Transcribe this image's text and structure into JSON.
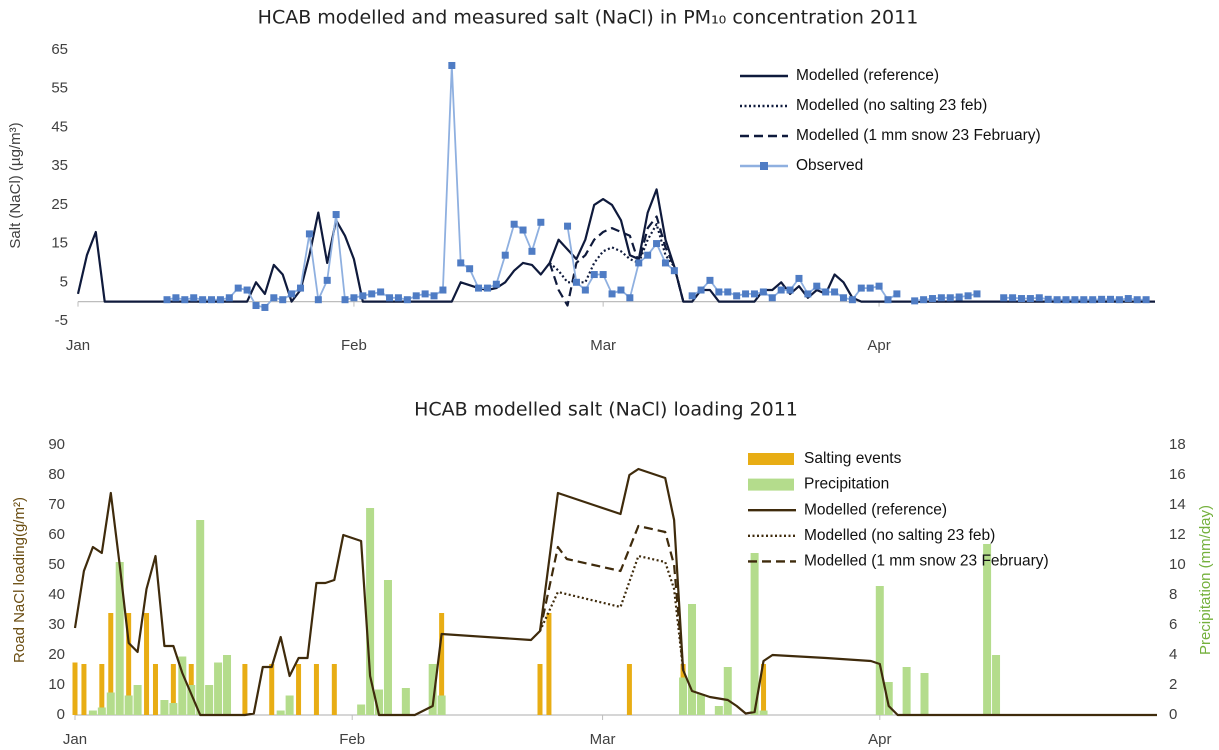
{
  "chart_data": [
    {
      "type": "line",
      "title": "HCAB modelled and measured salt (NaCl) in PM₁₀ concentration 2011",
      "y_label": "Salt (NaCl) (µg/m³)",
      "xlim": [
        1,
        122
      ],
      "xticks": [
        {
          "value": 1,
          "label": "Jan"
        },
        {
          "value": 32,
          "label": "Feb"
        },
        {
          "value": 60,
          "label": "Mar"
        },
        {
          "value": 91,
          "label": "Apr"
        }
      ],
      "ylim": [
        -5,
        65
      ],
      "yticks": [
        -5,
        5,
        15,
        25,
        35,
        45,
        55,
        65
      ],
      "legend": "top-right",
      "series": [
        {
          "name": "Modelled (reference)",
          "type": "line",
          "style": "solid",
          "color": "#0f1a3c",
          "x": [
            1,
            2,
            3,
            4,
            20,
            21,
            22,
            23,
            24,
            25,
            26,
            27,
            28,
            29,
            30,
            31,
            32,
            33,
            43,
            44,
            46,
            47,
            48,
            49,
            50,
            51,
            52,
            53,
            54,
            55,
            57,
            58,
            59,
            60,
            61,
            62,
            63,
            64,
            65,
            66,
            67,
            68,
            69,
            70,
            71,
            72,
            73,
            77,
            78,
            79,
            80,
            81,
            82,
            83,
            84,
            85,
            86,
            87,
            88,
            89,
            122
          ],
          "values": [
            2,
            12,
            18,
            0,
            0,
            5,
            2,
            9.5,
            7,
            0,
            3,
            12,
            23,
            10,
            21,
            17,
            11,
            0,
            0,
            5,
            3.5,
            3,
            3.5,
            5,
            8,
            10,
            9.5,
            7,
            10,
            16,
            11,
            16,
            25,
            26.5,
            25,
            21,
            12,
            11,
            23,
            29,
            16,
            9,
            0,
            0,
            3,
            3,
            0,
            0,
            3,
            3,
            5,
            2,
            4,
            1,
            3,
            2,
            7,
            5,
            1,
            0,
            0
          ]
        },
        {
          "name": "Modelled (no salting 23 feb)",
          "type": "line",
          "style": "dotted",
          "color": "#0f1a3c",
          "x": [
            54,
            55,
            56,
            58,
            59,
            60,
            61,
            62,
            63,
            64,
            65,
            66,
            67,
            68,
            69
          ],
          "values": [
            10,
            8,
            5,
            5,
            10,
            13,
            14,
            13,
            11,
            10,
            16,
            20,
            12,
            9,
            0
          ]
        },
        {
          "name": "Modelled (1 mm snow 23 February)",
          "type": "line",
          "style": "dashed",
          "color": "#0f1a3c",
          "x": [
            54,
            55,
            56,
            57,
            58,
            59,
            60,
            61,
            62,
            63,
            64,
            65,
            66,
            67,
            68,
            69
          ],
          "values": [
            10,
            3,
            -1,
            10,
            12,
            16,
            18,
            19,
            18,
            17,
            10,
            19,
            22,
            14,
            9,
            0
          ]
        },
        {
          "name": "Observed",
          "type": "line",
          "style": "solid",
          "marker": "square",
          "color": "#8fb0e0",
          "marker_color": "#4f7cc4",
          "x": [
            11,
            12,
            13,
            14,
            15,
            16,
            17,
            18,
            19,
            20,
            21,
            22,
            23,
            24,
            25,
            26,
            27,
            28,
            29,
            30,
            31,
            32,
            33,
            34,
            35,
            36,
            37,
            38,
            39,
            40,
            41,
            42,
            43,
            44,
            45,
            46,
            47,
            48,
            49,
            50,
            51,
            52,
            53,
            54,
            55,
            56,
            57,
            58,
            59,
            60,
            61,
            62,
            63,
            64,
            65,
            66,
            67,
            68,
            69,
            70,
            71,
            72,
            73,
            74,
            75,
            76,
            77,
            78,
            79,
            80,
            81,
            82,
            83,
            84,
            85,
            86,
            87,
            88,
            89,
            90,
            91,
            92,
            93,
            94,
            95,
            96,
            97,
            98,
            99,
            100,
            101,
            102,
            103,
            104,
            105,
            106,
            107,
            108,
            109,
            110,
            111,
            112,
            113,
            114,
            115,
            116,
            117,
            118,
            119,
            120,
            121
          ],
          "values": [
            0.5,
            1,
            0.5,
            1,
            0.5,
            0.5,
            0.5,
            1,
            3.5,
            3,
            -1,
            -1.5,
            1,
            0.5,
            2,
            3.5,
            17.5,
            0.5,
            5.5,
            22.5,
            0.5,
            1,
            1.5,
            2,
            2.5,
            1,
            1,
            0.5,
            1.5,
            2,
            1.5,
            3,
            61,
            10,
            8.5,
            3.5,
            3.5,
            4.5,
            12,
            20,
            18.5,
            13,
            20.5,
            null,
            null,
            19.5,
            5,
            3,
            7,
            7,
            2,
            3,
            1,
            10,
            12,
            15,
            10,
            8,
            null,
            1.5,
            3,
            5.5,
            2.5,
            2.5,
            1.5,
            2,
            2,
            2.5,
            1,
            3,
            3,
            6,
            2,
            4,
            2.5,
            2.5,
            1,
            0.5,
            3.5,
            3.5,
            4,
            0.5,
            2,
            null,
            0.2,
            0.5,
            0.8,
            1,
            1,
            1.2,
            1.5,
            2,
            null,
            null,
            1,
            1,
            0.8,
            0.8,
            1,
            0.6,
            0.5,
            0.5,
            0.5,
            0.5,
            0.5,
            0.6,
            0.6,
            0.5,
            0.8,
            0.5,
            0.5
          ]
        }
      ]
    },
    {
      "type": "combo",
      "title": "HCAB modelled salt (NaCl) loading 2011",
      "y_label": "Road NaCl loading(g/m²)",
      "y2_label": "Precipitation (mm/day)",
      "y_label_color": "#6b4e12",
      "y2_label_color": "#74b03c",
      "xlim": [
        1,
        122
      ],
      "xticks": [
        {
          "value": 1,
          "label": "Jan"
        },
        {
          "value": 32,
          "label": "Feb"
        },
        {
          "value": 60,
          "label": "Mar"
        },
        {
          "value": 91,
          "label": "Apr"
        }
      ],
      "ylim": [
        0,
        90
      ],
      "yticks": [
        0,
        10,
        20,
        30,
        40,
        50,
        60,
        70,
        80,
        90
      ],
      "y2lim": [
        0,
        18
      ],
      "y2ticks": [
        0,
        2,
        4,
        6,
        8,
        10,
        12,
        14,
        16,
        18
      ],
      "legend": "top-right",
      "series": [
        {
          "name": "Salting events",
          "type": "bar",
          "color": "#e8ad14",
          "x": [
            1,
            2,
            4,
            5,
            6,
            7,
            9,
            10,
            12,
            13,
            14,
            20,
            23,
            26,
            28,
            30,
            34,
            42,
            53,
            54,
            63,
            69,
            77,
            78
          ],
          "values": [
            17.5,
            17,
            17,
            34,
            34,
            34,
            34,
            17,
            17,
            17,
            17,
            17,
            17,
            17,
            17,
            17,
            17,
            34,
            17,
            34,
            17,
            17,
            17,
            17
          ]
        },
        {
          "name": "Precipitation",
          "type": "bar",
          "axis": "y2",
          "color": "#b4dc8c",
          "x": [
            3,
            4,
            5,
            6,
            7,
            8,
            11,
            12,
            13,
            14,
            15,
            16,
            17,
            18,
            24,
            25,
            33,
            34,
            35,
            36,
            38,
            41,
            42,
            69,
            70,
            71,
            73,
            74,
            77,
            78,
            91,
            92,
            94,
            96,
            103,
            104
          ],
          "values": [
            0.3,
            0.5,
            1.5,
            10.2,
            1.3,
            2,
            1,
            0.8,
            3.9,
            2,
            13,
            2,
            3.5,
            4,
            0.3,
            1.3,
            0.7,
            13.8,
            1.7,
            9,
            1.8,
            3.4,
            1.3,
            2.5,
            7.4,
            1.4,
            0.6,
            3.2,
            10.8,
            0.3,
            8.6,
            2.2,
            3.2,
            2.8,
            11.4,
            4
          ]
        },
        {
          "name": "Modelled (reference)",
          "type": "line",
          "style": "solid",
          "color": "#3f2b0c",
          "x": [
            1,
            2,
            3,
            4,
            5,
            6,
            7,
            8,
            9,
            10,
            11,
            12,
            13,
            15,
            20,
            21,
            22,
            23,
            24,
            25,
            26,
            27,
            28,
            29,
            30,
            31,
            32,
            33,
            34,
            35,
            39,
            41,
            42,
            52,
            53,
            55,
            59,
            62,
            63,
            64,
            67,
            68,
            69,
            70,
            72,
            74,
            75,
            76,
            77,
            78,
            79,
            85,
            90,
            91,
            92,
            93,
            122
          ],
          "values": [
            29,
            48,
            56,
            54,
            74,
            50,
            24,
            21,
            42,
            53,
            23,
            23,
            14,
            0,
            0,
            0.5,
            16,
            16,
            26,
            13,
            19,
            19,
            44,
            44,
            45,
            60,
            59,
            58,
            13,
            0,
            0,
            3,
            27,
            25,
            28,
            74,
            70,
            67,
            80,
            82,
            79,
            65,
            15,
            8,
            6,
            5,
            3,
            0.5,
            1,
            18,
            20,
            19,
            18,
            17,
            3,
            0,
            0
          ]
        },
        {
          "name": "Modelled (no salting 23 feb)",
          "type": "line",
          "style": "dotted",
          "color": "#3f2b0c",
          "x": [
            53,
            55,
            62,
            64,
            67,
            68,
            69
          ],
          "values": [
            28,
            41,
            36,
            53,
            51,
            42,
            15
          ]
        },
        {
          "name": "Modelled (1 mm snow 23 February)",
          "type": "line",
          "style": "dashed",
          "color": "#3f2b0c",
          "x": [
            53,
            55,
            56,
            62,
            64,
            67,
            68,
            69
          ],
          "values": [
            28,
            56,
            52,
            48,
            63,
            61,
            50,
            15
          ]
        }
      ]
    }
  ]
}
